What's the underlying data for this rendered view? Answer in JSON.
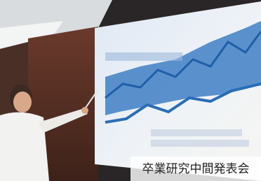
{
  "caption": "卒業研究中間発表会"
}
